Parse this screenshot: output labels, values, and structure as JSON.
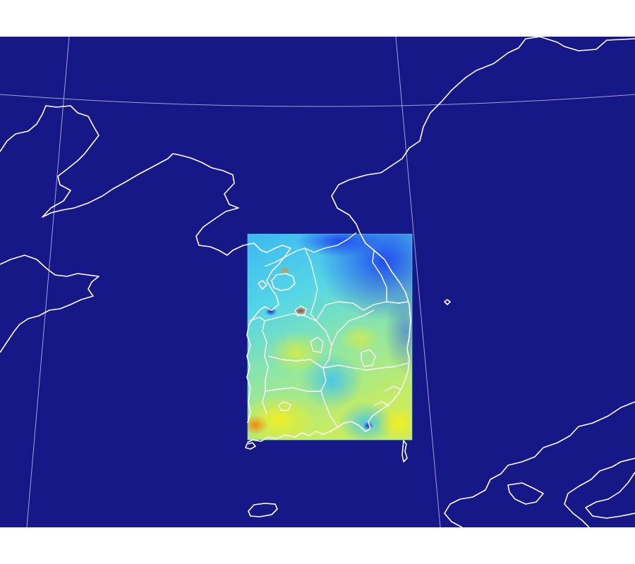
{
  "map": {
    "projection": "lambert-conformal",
    "colors": {
      "background": "#171887",
      "coastline": "#ffffff",
      "graticule": "#b8b9e6",
      "field_low": "#1a3cf0",
      "field_mid": "#4fd9e8",
      "field_high": "#f2f21a",
      "field_peak": "#e83010"
    },
    "layers": [
      "graticule",
      "data-field",
      "coastlines",
      "province-borders"
    ]
  }
}
